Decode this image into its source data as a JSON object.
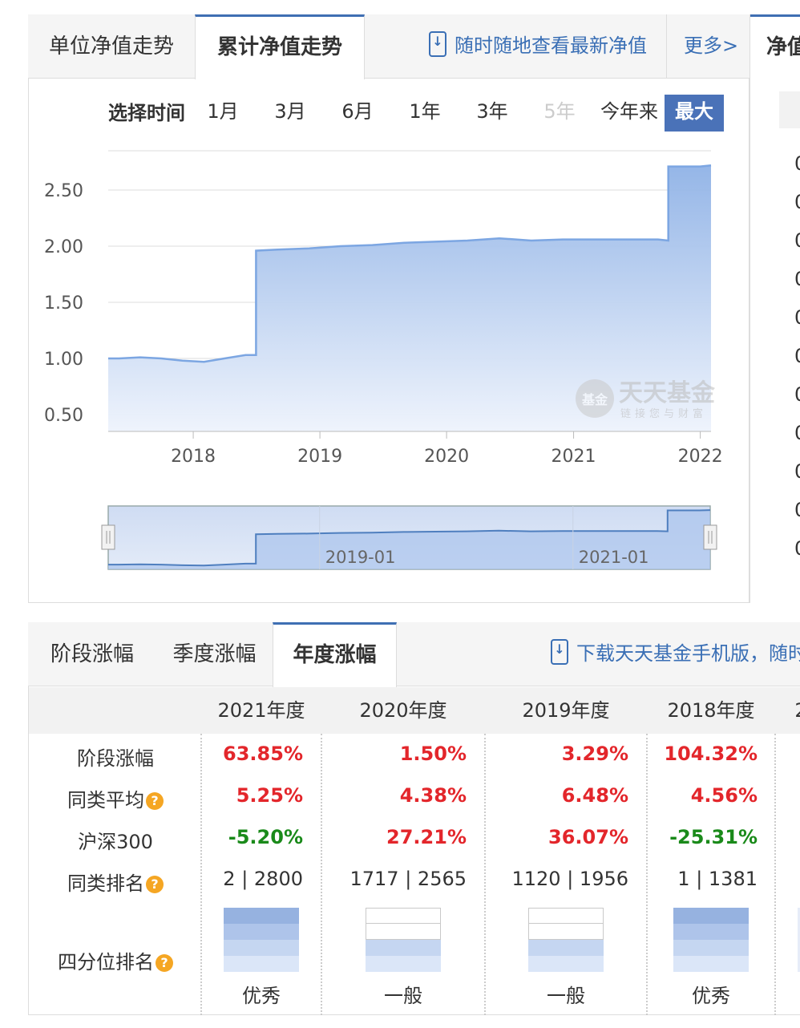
{
  "chart_tabs": {
    "unit_nav": "单位净值走势",
    "cumulative_nav": "累计净值走势",
    "mobile_promo": "随时随地查看最新净值",
    "more": "更多>"
  },
  "time_selector": {
    "label": "选择时间",
    "options": [
      "1月",
      "3月",
      "6月",
      "1年",
      "3年",
      "5年",
      "今年来",
      "最大"
    ],
    "disabled": "5年",
    "active": "最大"
  },
  "watermark": {
    "name": "天天基金",
    "slogan": "链接您与财富",
    "badge": "基金"
  },
  "chart_data": {
    "type": "area",
    "y_ticks": [
      "0.50",
      "1.00",
      "1.50",
      "2.00",
      "2.50"
    ],
    "x_ticks": [
      "2018",
      "2019",
      "2020",
      "2021",
      "2022"
    ],
    "ylim": [
      0.35,
      2.85
    ],
    "grid": true,
    "x": [
      "2017-05",
      "2017-06",
      "2017-08",
      "2017-10",
      "2017-12",
      "2018-02",
      "2018-04",
      "2018-06",
      "2018-07",
      "2018-07",
      "2018-09",
      "2018-12",
      "2019-03",
      "2019-06",
      "2019-09",
      "2019-12",
      "2020-03",
      "2020-06",
      "2020-09",
      "2020-12",
      "2021-03",
      "2021-06",
      "2021-09",
      "2021-10",
      "2021-10",
      "2022-01",
      "2022-02"
    ],
    "y": [
      1.0,
      1.0,
      1.01,
      1.0,
      0.98,
      0.97,
      1.0,
      1.03,
      1.03,
      1.96,
      1.97,
      1.98,
      2.0,
      2.01,
      2.03,
      2.04,
      2.05,
      2.07,
      2.05,
      2.06,
      2.06,
      2.06,
      2.06,
      2.05,
      2.71,
      2.71,
      2.72
    ],
    "navigator_ticks": [
      "2019-01",
      "2021-01"
    ]
  },
  "side_panel": {
    "title": "净值",
    "values": [
      "0",
      "0",
      "0",
      "0",
      "0",
      "0",
      "0",
      "0",
      "0",
      "0",
      "0"
    ]
  },
  "returns_tabs": {
    "stage": "阶段涨幅",
    "quarterly": "季度涨幅",
    "annual": "年度涨幅",
    "mobile_promo": "下载天天基金手机版，随时"
  },
  "returns_table": {
    "columns": [
      "2021年度",
      "2020年度",
      "2019年度",
      "2018年度",
      "2"
    ],
    "rows": {
      "stage_return": {
        "label": "阶段涨幅",
        "values": [
          "63.85%",
          "1.50%",
          "3.29%",
          "104.32%"
        ]
      },
      "peer_avg": {
        "label": "同类平均",
        "values": [
          "5.25%",
          "4.38%",
          "6.48%",
          "4.56%"
        ]
      },
      "hs300": {
        "label": "沪深300",
        "values": [
          "-5.20%",
          "27.21%",
          "36.07%",
          "-25.31%"
        ]
      },
      "peer_rank": {
        "label": "同类排名",
        "values": [
          "2 | 2800",
          "1717 | 2565",
          "1120 | 1956",
          "1 | 1381"
        ]
      },
      "quartile": {
        "label": "四分位排名",
        "values": [
          "优秀",
          "一般",
          "一般",
          "优秀"
        ],
        "levels": [
          4,
          2,
          2,
          4
        ]
      }
    },
    "help_icon": "?",
    "colors": {
      "up": "#e3262b",
      "down": "#1a8a1a",
      "accent": "#4a72b8",
      "area": "#9bbbe8"
    }
  }
}
